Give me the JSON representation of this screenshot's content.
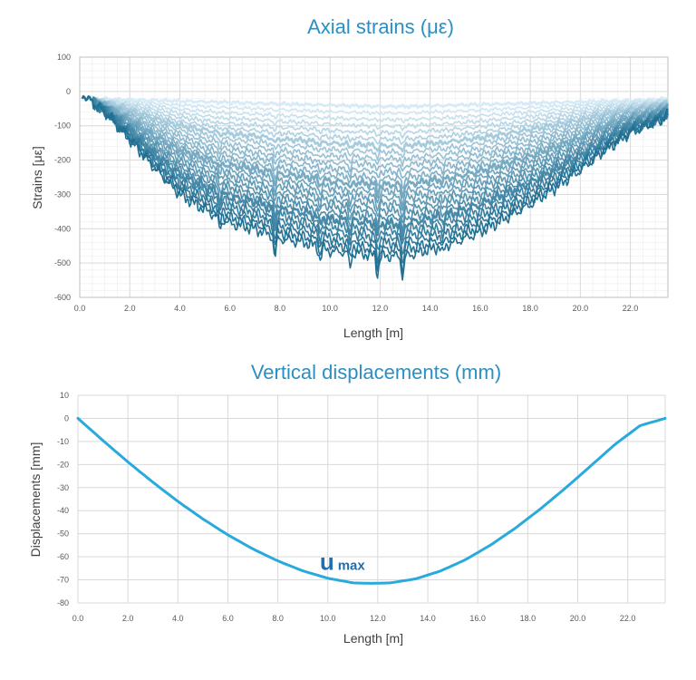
{
  "chart_data": [
    {
      "type": "line",
      "title": "Axial strains (με)",
      "xlabel": "Length [m]",
      "ylabel": "Strains [με]",
      "xlim": [
        0,
        23.5
      ],
      "ylim": [
        -600,
        100
      ],
      "x_ticks": [
        "0.0",
        "2.0",
        "4.0",
        "6.0",
        "8.0",
        "10.0",
        "12.0",
        "14.0",
        "16.0",
        "18.0",
        "20.0",
        "22.0"
      ],
      "y_ticks": [
        "100",
        "0",
        "-100",
        "-200",
        "-300",
        "-400",
        "-500",
        "-600"
      ],
      "grid": true,
      "minor_grid": true,
      "legend": "none",
      "series_count": 24,
      "color_range": [
        "#d6ebf7",
        "#1f6f93"
      ],
      "envelope": {
        "x": [
          0.0,
          0.3,
          1.0,
          2.0,
          3.0,
          4.0,
          5.0,
          6.0,
          7.0,
          8.0,
          9.0,
          10.0,
          11.0,
          12.0,
          13.0,
          14.0,
          15.0,
          16.0,
          17.0,
          18.0,
          19.0,
          20.0,
          21.0,
          22.0,
          23.0,
          23.5
        ],
        "min_load": [
          -20,
          -20,
          -22,
          -24,
          -26,
          -28,
          -30,
          -32,
          -34,
          -36,
          -38,
          -40,
          -42,
          -44,
          -44,
          -42,
          -40,
          -38,
          -36,
          -34,
          -32,
          -30,
          -28,
          -26,
          -24,
          -20
        ],
        "max_load": [
          -25,
          -25,
          -60,
          -140,
          -225,
          -300,
          -345,
          -385,
          -400,
          -430,
          -440,
          -465,
          -470,
          -480,
          -480,
          -460,
          -440,
          -410,
          -370,
          -330,
          -280,
          -230,
          -170,
          -120,
          -90,
          -70
        ]
      },
      "dips": [
        {
          "x": 5.6,
          "depth": 35
        },
        {
          "x": 7.8,
          "depth": 60
        },
        {
          "x": 9.6,
          "depth": 35
        },
        {
          "x": 10.8,
          "depth": 45
        },
        {
          "x": 11.9,
          "depth": 55
        },
        {
          "x": 12.9,
          "depth": 60
        },
        {
          "x": 14.5,
          "depth": 25
        }
      ]
    },
    {
      "type": "line",
      "title": "Vertical displacements (mm)",
      "xlabel": "Length [m]",
      "ylabel": "Displacements [mm]",
      "xlim": [
        0,
        23.5
      ],
      "ylim": [
        -80,
        10
      ],
      "x_ticks": [
        "0.0",
        "2.0",
        "4.0",
        "6.0",
        "8.0",
        "10.0",
        "12.0",
        "14.0",
        "16.0",
        "18.0",
        "20.0",
        "22.0"
      ],
      "y_ticks": [
        "10",
        "0",
        "-10",
        "-20",
        "-30",
        "-40",
        "-50",
        "-60",
        "-70",
        "-80"
      ],
      "grid": true,
      "legend": "none",
      "color": "#29aadd",
      "series": [
        {
          "x": [
            0,
            1,
            2,
            3,
            4,
            5,
            6,
            7,
            8,
            9,
            10,
            11,
            11.75,
            12.5,
            13.5,
            14.5,
            15.5,
            16.5,
            17.5,
            18.5,
            19.5,
            20.5,
            21.5,
            22.5,
            23.5
          ],
          "values": [
            0,
            -9.6,
            -18.9,
            -27.7,
            -36.0,
            -43.6,
            -50.5,
            -56.6,
            -61.8,
            -66.1,
            -69.3,
            -71.3,
            -71.5,
            -71.3,
            -69.6,
            -66.2,
            -61.3,
            -55.0,
            -47.6,
            -39.3,
            -30.3,
            -20.8,
            -11.2,
            -3.1,
            0
          ]
        }
      ],
      "annotation": {
        "text": "u",
        "subscript": "max",
        "x": 11.2,
        "y": -61,
        "color": "#1f6fb2"
      }
    }
  ]
}
